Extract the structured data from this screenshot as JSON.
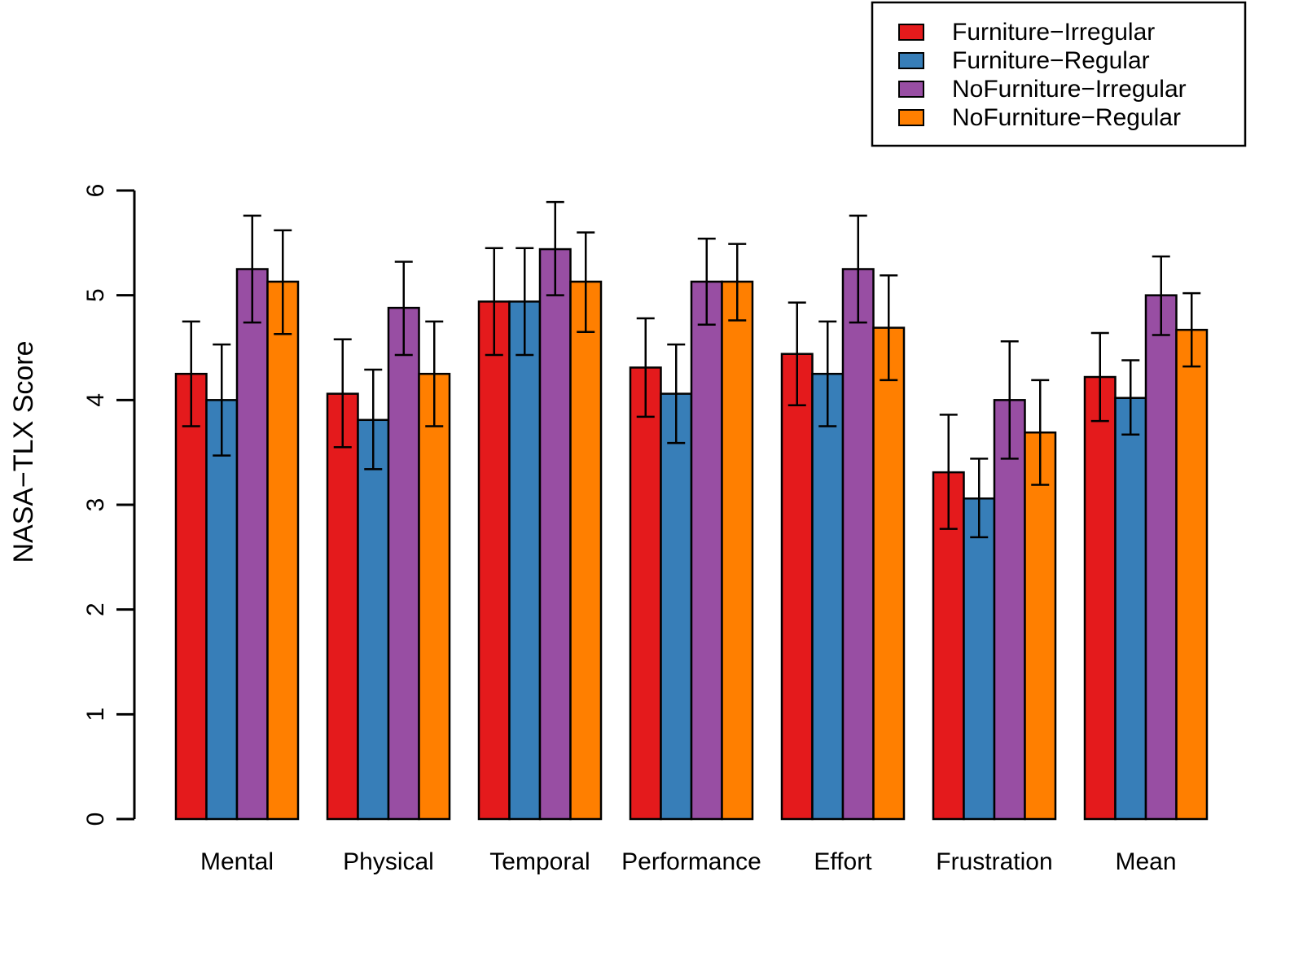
{
  "chart_data": {
    "type": "bar",
    "title": "",
    "xlabel": "",
    "ylabel": "NASA−TLX Score",
    "ylim": [
      0,
      6
    ],
    "yticks": [
      "0",
      "1",
      "2",
      "3",
      "4",
      "5",
      "6"
    ],
    "grid": false,
    "legend_position": "top-right",
    "categories": [
      "Mental",
      "Physical",
      "Temporal",
      "Performance",
      "Effort",
      "Frustration",
      "Mean"
    ],
    "series": [
      {
        "name": "Furniture−Irregular",
        "color": "#E41A1C",
        "values": [
          4.25,
          4.06,
          4.94,
          4.31,
          4.44,
          3.31,
          4.22
        ],
        "err_low": [
          3.75,
          3.55,
          4.43,
          3.84,
          3.95,
          2.77,
          3.8
        ],
        "err_high": [
          4.75,
          4.58,
          5.45,
          4.78,
          4.93,
          3.86,
          4.64
        ]
      },
      {
        "name": "Furniture−Regular",
        "color": "#377EB8",
        "values": [
          4.0,
          3.81,
          4.94,
          4.06,
          4.25,
          3.06,
          4.02
        ],
        "err_low": [
          3.47,
          3.34,
          4.43,
          3.59,
          3.75,
          2.69,
          3.67
        ],
        "err_high": [
          4.53,
          4.29,
          5.45,
          4.53,
          4.75,
          3.44,
          4.38
        ]
      },
      {
        "name": "NoFurniture−Irregular",
        "color": "#984EA3",
        "values": [
          5.25,
          4.88,
          5.44,
          5.13,
          5.25,
          4.0,
          5.0
        ],
        "err_low": [
          4.74,
          4.43,
          5.0,
          4.72,
          4.74,
          3.44,
          4.62
        ],
        "err_high": [
          5.76,
          5.32,
          5.89,
          5.54,
          5.76,
          4.56,
          5.37
        ]
      },
      {
        "name": "NoFurniture−Regular",
        "color": "#FF7F00",
        "values": [
          5.13,
          4.25,
          5.13,
          5.13,
          4.69,
          3.69,
          4.67
        ],
        "err_low": [
          4.63,
          3.75,
          4.65,
          4.76,
          4.19,
          3.19,
          4.32
        ],
        "err_high": [
          5.62,
          4.75,
          5.6,
          5.49,
          5.19,
          4.19,
          5.02
        ]
      }
    ]
  }
}
